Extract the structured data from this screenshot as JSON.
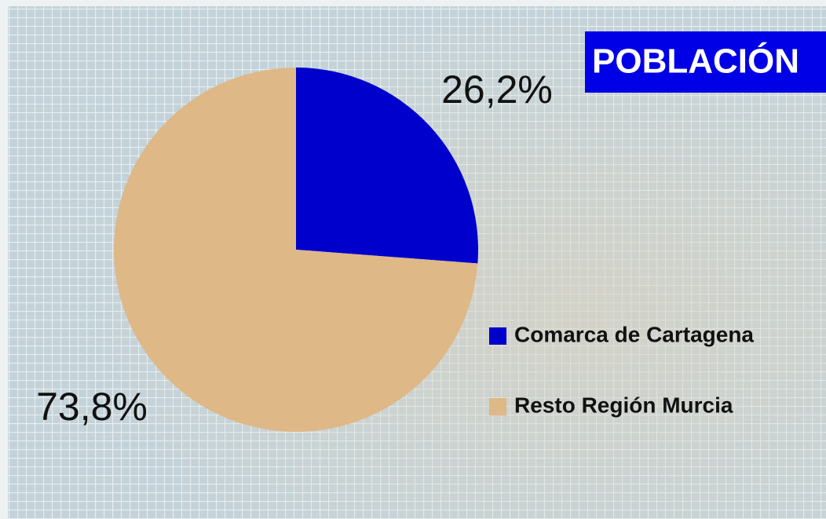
{
  "chart_data": {
    "type": "pie",
    "title": "POBLACIÓN",
    "categories": [
      "Comarca de Cartagena",
      "Resto Región Murcia"
    ],
    "values": [
      26.2,
      73.8
    ],
    "value_labels": [
      "26,2%",
      "73,8%"
    ],
    "colors": [
      "#0000cc",
      "#deb887"
    ]
  }
}
